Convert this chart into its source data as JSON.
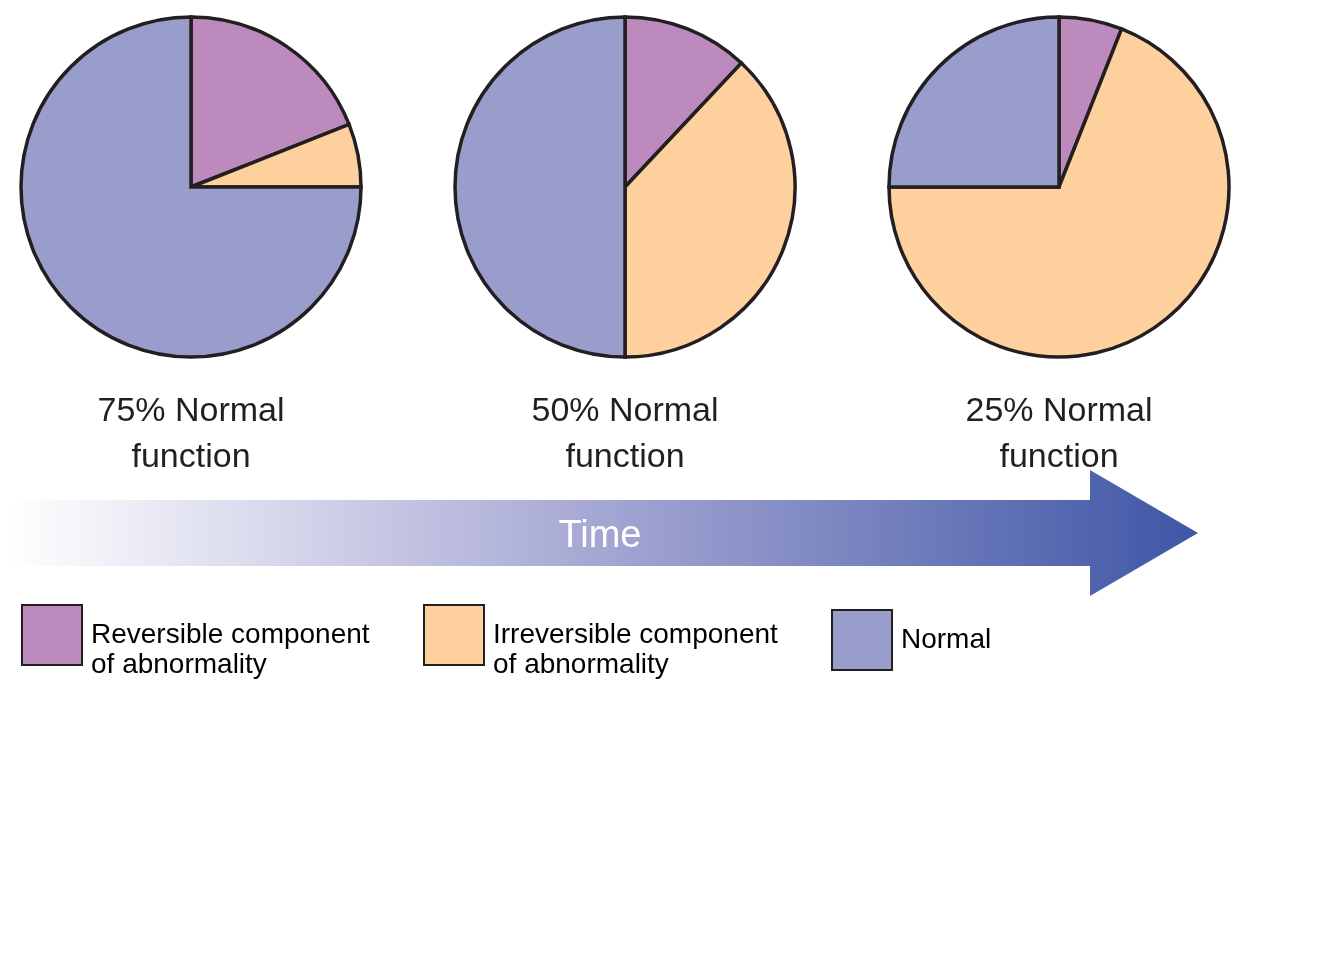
{
  "chart_data": {
    "type": "pie",
    "categories": [
      "Reversible component of abnormality",
      "Irreversible component of abnormality",
      "Normal"
    ],
    "colors": [
      "#bc8abd",
      "#fdd09e",
      "#999dcc"
    ],
    "legend": "bottom",
    "annotations": [
      "Time"
    ],
    "series": [
      {
        "name": "75% Normal function",
        "values": [
          19,
          6,
          75
        ]
      },
      {
        "name": "50% Normal function",
        "values": [
          12,
          38,
          50
        ]
      },
      {
        "name": "25% Normal function",
        "values": [
          6,
          69,
          25
        ]
      }
    ]
  }
}
